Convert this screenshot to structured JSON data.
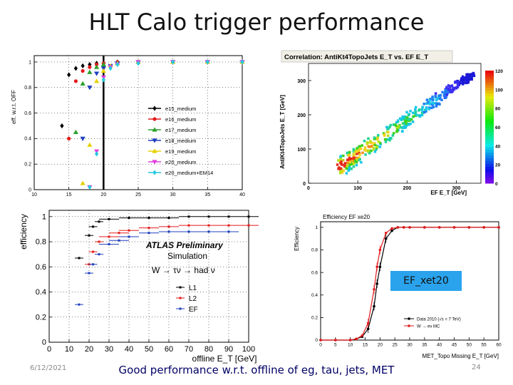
{
  "slide": {
    "title": "HLT Calo trigger performance",
    "footer": "Good performance w.r.t. offline of eg, tau, jets, MET",
    "date": "6/12/2021",
    "page_number": "24",
    "overlay_label": "EF_xet20"
  },
  "chart_data": [
    {
      "type": "scatter",
      "ylabel": "eff. w.r.t. OFF",
      "xlim": [
        10,
        40
      ],
      "ylim": [
        0,
        1.05
      ],
      "xticks": [
        "10",
        "15",
        "20",
        "25",
        "30",
        "35",
        "40"
      ],
      "yticks": [
        "0",
        "0.2",
        "0.4",
        "0.6",
        "0.8",
        "1"
      ],
      "legend_position": "right",
      "series": [
        {
          "name": "e15_medium",
          "color": "#000000",
          "x": [
            14,
            15,
            16,
            17,
            18,
            19,
            20,
            22,
            25,
            30,
            35,
            40
          ],
          "y": [
            0.5,
            0.9,
            0.95,
            0.97,
            0.98,
            0.99,
            0.99,
            1,
            1,
            1,
            1,
            1
          ]
        },
        {
          "name": "e16_medium",
          "color": "#e41a1c",
          "x": [
            15,
            16,
            17,
            18,
            19,
            20,
            22,
            25,
            30,
            35,
            40
          ],
          "y": [
            0.4,
            0.85,
            0.93,
            0.96,
            0.98,
            0.99,
            1,
            1,
            1,
            1,
            1
          ]
        },
        {
          "name": "e17_medium",
          "color": "#2ca02c",
          "x": [
            16,
            17,
            18,
            19,
            20,
            22,
            25,
            30,
            35,
            40
          ],
          "y": [
            0.45,
            0.83,
            0.92,
            0.96,
            0.98,
            0.99,
            1,
            1,
            1,
            1
          ]
        },
        {
          "name": "e18_medium",
          "color": "#1f3fbf",
          "x": [
            17,
            18,
            19,
            20,
            21,
            22,
            25,
            30,
            35,
            40
          ],
          "y": [
            0.4,
            0.8,
            0.91,
            0.95,
            0.97,
            0.99,
            1,
            1,
            1,
            1
          ]
        },
        {
          "name": "e19_medium",
          "color": "#e6d000",
          "x": [
            17,
            18,
            19,
            20,
            21,
            22,
            25,
            30,
            35,
            40
          ],
          "y": [
            0.05,
            0.35,
            0.85,
            0.93,
            0.97,
            0.99,
            1,
            1,
            1,
            1
          ]
        },
        {
          "name": "e20_medium",
          "color": "#e040e0",
          "x": [
            18,
            19,
            20,
            21,
            22,
            25,
            30,
            35,
            40
          ],
          "y": [
            0.02,
            0.3,
            0.88,
            0.96,
            0.98,
            1,
            1,
            1,
            1
          ]
        },
        {
          "name": "e20_medium+EM14",
          "color": "#22c8e0",
          "x": [
            18,
            19,
            20,
            21,
            22,
            25,
            30,
            35,
            40
          ],
          "y": [
            0.02,
            0.28,
            0.86,
            0.95,
            0.98,
            0.99,
            1,
            1,
            1
          ]
        }
      ]
    },
    {
      "type": "heatmap",
      "title": "Correlation: AntiKt4TopoJets E_T vs. EF E_T",
      "xlabel": "EF E_T [GeV]",
      "ylabel": "AntiKt4TopoJets E_T [GeV]",
      "xlim": [
        0,
        350
      ],
      "ylim": [
        0,
        350
      ],
      "xticks": [
        "0",
        "100",
        "200",
        "300"
      ],
      "yticks": [
        "0",
        "100",
        "200",
        "300"
      ],
      "zticks": [
        "0",
        "20",
        "40",
        "60",
        "80",
        "100",
        "120"
      ],
      "zlim": [
        0,
        120
      ],
      "trend": {
        "x": [
          60,
          100,
          150,
          200,
          250,
          300,
          330
        ],
        "y": [
          50,
          90,
          140,
          190,
          240,
          290,
          320
        ]
      }
    },
    {
      "type": "scatter",
      "ylabel": "efficiency",
      "xlabel": "offline E_T [GeV]",
      "xlim": [
        0,
        100
      ],
      "ylim": [
        0,
        1.05
      ],
      "xticks": [
        "0",
        "10",
        "20",
        "30",
        "40",
        "50",
        "60",
        "70",
        "80",
        "90",
        "100"
      ],
      "yticks": [
        "0",
        "0.2",
        "0.4",
        "0.6",
        "0.8",
        "1"
      ],
      "annotations": [
        "ATLAS Preliminary",
        "Simulation",
        "W → τν → had ν"
      ],
      "legend_position": "center-right",
      "series": [
        {
          "name": "L1",
          "color": "#000000",
          "x": [
            15,
            20,
            22,
            25,
            30,
            40,
            50,
            60,
            70,
            80,
            90,
            100
          ],
          "y": [
            0.67,
            0.85,
            0.92,
            0.96,
            0.98,
            0.99,
            0.99,
            0.99,
            1,
            1,
            1,
            1
          ]
        },
        {
          "name": "L2",
          "color": "#e41a1c",
          "x": [
            20,
            22,
            25,
            30,
            35,
            40,
            50,
            60,
            70,
            80,
            90,
            100
          ],
          "y": [
            0.62,
            0.72,
            0.8,
            0.84,
            0.87,
            0.89,
            0.91,
            0.92,
            0.93,
            0.93,
            0.93,
            0.93
          ]
        },
        {
          "name": "EF",
          "color": "#1f3fbf",
          "x": [
            15,
            20,
            22,
            25,
            30,
            35,
            40,
            50,
            60,
            70,
            80,
            90
          ],
          "y": [
            0.3,
            0.55,
            0.62,
            0.7,
            0.78,
            0.81,
            0.84,
            0.87,
            0.88,
            0.88,
            0.88,
            0.88
          ]
        }
      ]
    },
    {
      "type": "line",
      "title": "Efficiency EF xe20",
      "ylabel": "Efficiency",
      "xlabel": "MET_Topo Missing E_T [GeV]",
      "xlim": [
        0,
        60
      ],
      "ylim": [
        0,
        1.05
      ],
      "xticks": [
        "0",
        "5",
        "10",
        "15",
        "20",
        "25",
        "30",
        "35",
        "40",
        "45",
        "50",
        "55",
        "60"
      ],
      "yticks": [
        "0",
        "0.2",
        "0.4",
        "0.6",
        "0.8",
        "1"
      ],
      "legend_position": "bottom-right",
      "series": [
        {
          "name": "Data 2010 (√s = 7 TeV)",
          "color": "#000000",
          "x": [
            0,
            5,
            10,
            12,
            14,
            16,
            18,
            19,
            20,
            22,
            24,
            26,
            28,
            30,
            35,
            40,
            45,
            50,
            55,
            60
          ],
          "y": [
            0,
            0,
            0,
            0.01,
            0.03,
            0.1,
            0.3,
            0.5,
            0.65,
            0.9,
            0.97,
            1,
            1,
            1,
            1,
            1,
            1,
            1,
            1,
            1
          ]
        },
        {
          "name": "W → eν MC",
          "color": "#e41a1c",
          "x": [
            0,
            5,
            10,
            12,
            14,
            16,
            18,
            19,
            20,
            22,
            24,
            26,
            28,
            30,
            35,
            40,
            45,
            50,
            55,
            60
          ],
          "y": [
            0,
            0,
            0,
            0.01,
            0.04,
            0.15,
            0.45,
            0.65,
            0.8,
            0.95,
            0.99,
            1,
            1,
            1,
            1,
            1,
            1,
            1,
            1,
            1
          ]
        }
      ]
    }
  ]
}
